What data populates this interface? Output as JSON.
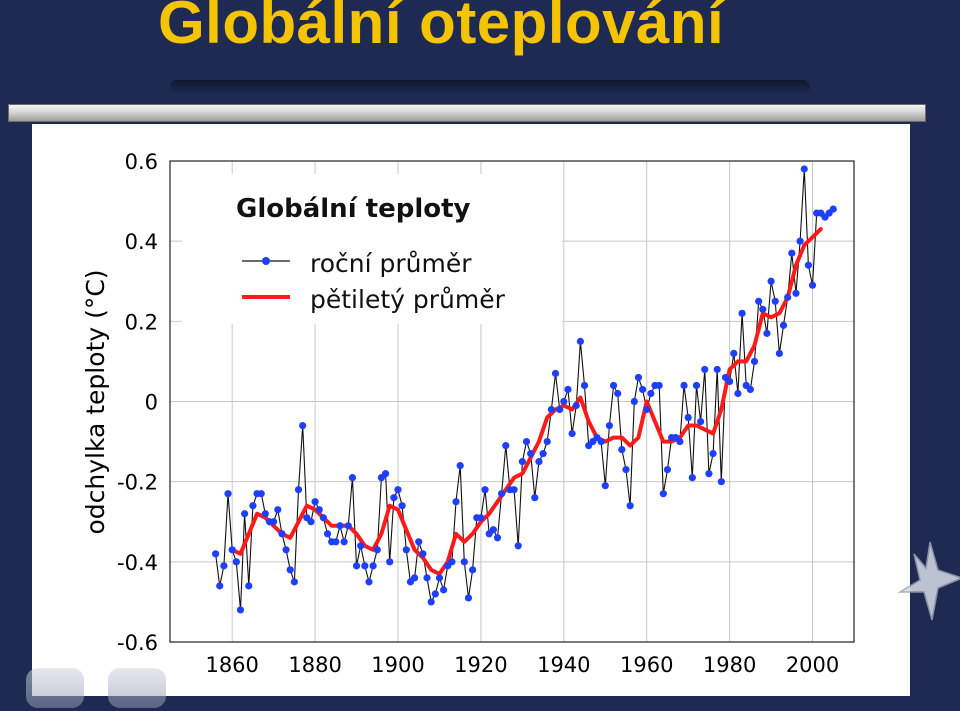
{
  "slide": {
    "title": "Globální oteplování"
  },
  "colors": {
    "background": "#1e2a52",
    "title": "#f5c400",
    "annual": "#1f3fff",
    "five_year": "#ff1a1a"
  },
  "icons": [
    "back-nav-icon",
    "forward-nav-icon",
    "star-icon"
  ],
  "chart_data": {
    "type": "line",
    "title": "Globální teploty",
    "xlabel": "",
    "ylabel": "odchylka teploty   (°C)",
    "xlim": [
      1845,
      2010
    ],
    "ylim": [
      -0.6,
      0.6
    ],
    "xticks": [
      1860,
      1880,
      1900,
      1920,
      1940,
      1960,
      1980,
      2000
    ],
    "yticks": [
      -0.6,
      -0.4,
      -0.2,
      0,
      0.2,
      0.4,
      0.6
    ],
    "ytick_labels": [
      "-0.6",
      "-0.4",
      "-0.2",
      "0",
      "0.2",
      "0.4",
      "0.6"
    ],
    "grid": true,
    "legend_position": "top-left",
    "series": [
      {
        "name": "roční průměr",
        "style": "line-with-markers",
        "color": "#1f3fff",
        "x": [
          1856,
          1857,
          1858,
          1859,
          1860,
          1861,
          1862,
          1863,
          1864,
          1865,
          1866,
          1867,
          1868,
          1869,
          1870,
          1871,
          1872,
          1873,
          1874,
          1875,
          1876,
          1877,
          1878,
          1879,
          1880,
          1881,
          1882,
          1883,
          1884,
          1885,
          1886,
          1887,
          1888,
          1889,
          1890,
          1891,
          1892,
          1893,
          1894,
          1895,
          1896,
          1897,
          1898,
          1899,
          1900,
          1901,
          1902,
          1903,
          1904,
          1905,
          1906,
          1907,
          1908,
          1909,
          1910,
          1911,
          1912,
          1913,
          1914,
          1915,
          1916,
          1917,
          1918,
          1919,
          1920,
          1921,
          1922,
          1923,
          1924,
          1925,
          1926,
          1927,
          1928,
          1929,
          1930,
          1931,
          1932,
          1933,
          1934,
          1935,
          1936,
          1937,
          1938,
          1939,
          1940,
          1941,
          1942,
          1943,
          1944,
          1945,
          1946,
          1947,
          1948,
          1949,
          1950,
          1951,
          1952,
          1953,
          1954,
          1955,
          1956,
          1957,
          1958,
          1959,
          1960,
          1961,
          1962,
          1963,
          1964,
          1965,
          1966,
          1967,
          1968,
          1969,
          1970,
          1971,
          1972,
          1973,
          1974,
          1975,
          1976,
          1977,
          1978,
          1979,
          1980,
          1981,
          1982,
          1983,
          1984,
          1985,
          1986,
          1987,
          1988,
          1989,
          1990,
          1991,
          1992,
          1993,
          1994,
          1995,
          1996,
          1997,
          1998,
          1999,
          2000,
          2001,
          2002,
          2003,
          2004,
          2005
        ],
        "y": [
          -0.38,
          -0.46,
          -0.41,
          -0.23,
          -0.37,
          -0.4,
          -0.52,
          -0.28,
          -0.46,
          -0.26,
          -0.23,
          -0.23,
          -0.28,
          -0.3,
          -0.3,
          -0.27,
          -0.33,
          -0.37,
          -0.42,
          -0.45,
          -0.22,
          -0.06,
          -0.29,
          -0.3,
          -0.25,
          -0.27,
          -0.29,
          -0.33,
          -0.35,
          -0.35,
          -0.31,
          -0.35,
          -0.31,
          -0.19,
          -0.41,
          -0.36,
          -0.41,
          -0.45,
          -0.41,
          -0.37,
          -0.19,
          -0.18,
          -0.4,
          -0.24,
          -0.22,
          -0.26,
          -0.37,
          -0.45,
          -0.44,
          -0.35,
          -0.38,
          -0.44,
          -0.5,
          -0.48,
          -0.44,
          -0.47,
          -0.41,
          -0.4,
          -0.25,
          -0.16,
          -0.4,
          -0.49,
          -0.42,
          -0.29,
          -0.29,
          -0.22,
          -0.33,
          -0.32,
          -0.34,
          -0.23,
          -0.11,
          -0.22,
          -0.22,
          -0.36,
          -0.15,
          -0.1,
          -0.13,
          -0.24,
          -0.15,
          -0.13,
          -0.1,
          -0.02,
          0.07,
          -0.02,
          0.0,
          0.03,
          -0.08,
          -0.01,
          0.15,
          0.04,
          -0.11,
          -0.1,
          -0.09,
          -0.1,
          -0.21,
          -0.06,
          0.04,
          0.02,
          -0.12,
          -0.17,
          -0.26,
          0.0,
          0.06,
          0.03,
          -0.02,
          0.02,
          0.04,
          0.04,
          -0.23,
          -0.17,
          -0.09,
          -0.09,
          -0.1,
          0.04,
          -0.04,
          -0.19,
          0.04,
          -0.05,
          0.08,
          -0.18,
          -0.13,
          0.08,
          -0.2,
          0.06,
          0.05,
          0.12,
          0.02,
          0.22,
          0.04,
          0.03,
          0.1,
          0.25,
          0.23,
          0.17,
          0.3,
          0.25,
          0.12,
          0.19,
          0.26,
          0.37,
          0.27,
          0.4,
          0.58,
          0.34,
          0.29,
          0.47,
          0.47,
          0.46,
          0.47,
          0.48
        ]
      },
      {
        "name": "pětiletý průměr",
        "style": "smooth-line",
        "color": "#ff1a1a",
        "x": [
          1860,
          1862,
          1864,
          1866,
          1868,
          1870,
          1872,
          1874,
          1876,
          1878,
          1880,
          1882,
          1884,
          1886,
          1888,
          1890,
          1892,
          1894,
          1896,
          1898,
          1900,
          1902,
          1904,
          1906,
          1908,
          1910,
          1912,
          1914,
          1916,
          1918,
          1920,
          1922,
          1924,
          1926,
          1928,
          1930,
          1932,
          1934,
          1936,
          1938,
          1940,
          1942,
          1944,
          1946,
          1948,
          1950,
          1952,
          1954,
          1956,
          1958,
          1960,
          1962,
          1964,
          1966,
          1968,
          1970,
          1972,
          1974,
          1976,
          1978,
          1980,
          1982,
          1984,
          1986,
          1988,
          1990,
          1992,
          1994,
          1996,
          1998,
          2000,
          2002
        ],
        "y": [
          -0.37,
          -0.38,
          -0.33,
          -0.28,
          -0.29,
          -0.31,
          -0.33,
          -0.34,
          -0.3,
          -0.26,
          -0.27,
          -0.29,
          -0.31,
          -0.31,
          -0.31,
          -0.33,
          -0.36,
          -0.37,
          -0.33,
          -0.26,
          -0.27,
          -0.32,
          -0.37,
          -0.39,
          -0.42,
          -0.43,
          -0.4,
          -0.33,
          -0.35,
          -0.33,
          -0.3,
          -0.28,
          -0.25,
          -0.22,
          -0.19,
          -0.18,
          -0.14,
          -0.1,
          -0.04,
          -0.02,
          -0.01,
          -0.02,
          0.01,
          -0.05,
          -0.09,
          -0.1,
          -0.09,
          -0.09,
          -0.11,
          -0.09,
          0.0,
          -0.05,
          -0.1,
          -0.1,
          -0.09,
          -0.06,
          -0.06,
          -0.07,
          -0.08,
          -0.02,
          0.08,
          0.1,
          0.1,
          0.14,
          0.22,
          0.21,
          0.22,
          0.26,
          0.34,
          0.39,
          0.41,
          0.43
        ]
      }
    ]
  }
}
